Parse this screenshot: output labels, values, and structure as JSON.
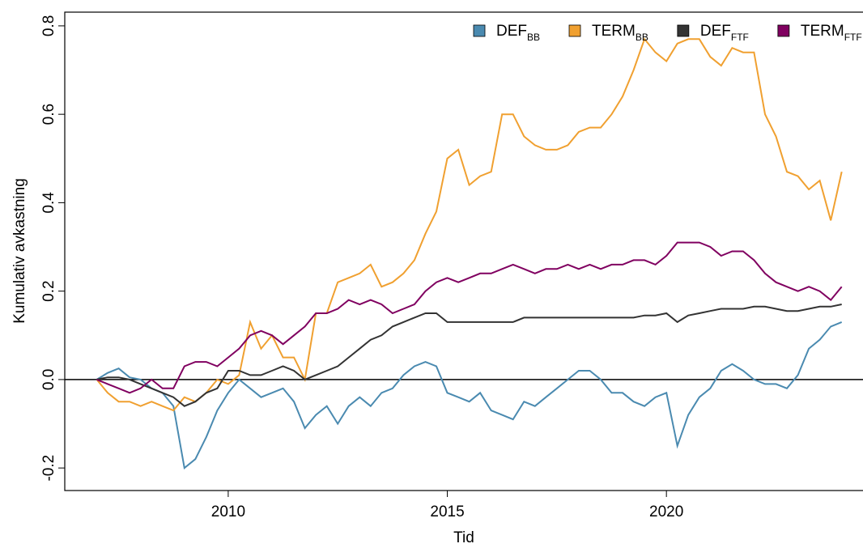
{
  "chart_data": {
    "type": "line",
    "xlabel": "Tid",
    "ylabel": "Kumulativ avkastning",
    "x": [
      2007,
      2007.25,
      2007.5,
      2007.75,
      2008,
      2008.25,
      2008.5,
      2008.75,
      2009,
      2009.25,
      2009.5,
      2009.75,
      2010,
      2010.25,
      2010.5,
      2010.75,
      2011,
      2011.25,
      2011.5,
      2011.75,
      2012,
      2012.25,
      2012.5,
      2012.75,
      2013,
      2013.25,
      2013.5,
      2013.75,
      2014,
      2014.25,
      2014.5,
      2014.75,
      2015,
      2015.25,
      2015.5,
      2015.75,
      2016,
      2016.25,
      2016.5,
      2016.75,
      2017,
      2017.25,
      2017.5,
      2017.75,
      2018,
      2018.25,
      2018.5,
      2018.75,
      2019,
      2019.25,
      2019.5,
      2019.75,
      2020,
      2020.25,
      2020.5,
      2020.75,
      2021,
      2021.25,
      2021.5,
      2021.75,
      2022,
      2022.25,
      2022.5,
      2022.75,
      2023,
      2023.25,
      2023.5,
      2023.75,
      2024
    ],
    "series": [
      {
        "name": "DEF",
        "subscript": "BB",
        "color": "#4a8ab0",
        "values": [
          0,
          0.015,
          0.025,
          0.005,
          0,
          -0.02,
          -0.03,
          -0.06,
          -0.2,
          -0.18,
          -0.13,
          -0.07,
          -0.03,
          0,
          -0.02,
          -0.04,
          -0.03,
          -0.02,
          -0.05,
          -0.11,
          -0.08,
          -0.06,
          -0.1,
          -0.06,
          -0.04,
          -0.06,
          -0.03,
          -0.02,
          0.01,
          0.03,
          0.04,
          0.03,
          -0.03,
          -0.04,
          -0.05,
          -0.03,
          -0.07,
          -0.08,
          -0.09,
          -0.05,
          -0.06,
          -0.04,
          -0.02,
          0,
          0.02,
          0.02,
          0,
          -0.03,
          -0.03,
          -0.05,
          -0.06,
          -0.04,
          -0.03,
          -0.15,
          -0.08,
          -0.04,
          -0.02,
          0.02,
          0.035,
          0.02,
          0,
          -0.01,
          -0.01,
          -0.02,
          0.01,
          0.07,
          0.09,
          0.12,
          0.13
        ]
      },
      {
        "name": "TERM",
        "subscript": "BB",
        "color": "#f0a030",
        "values": [
          0,
          -0.03,
          -0.05,
          -0.05,
          -0.06,
          -0.05,
          -0.06,
          -0.07,
          -0.04,
          -0.05,
          -0.03,
          0,
          -0.01,
          0.01,
          0.13,
          0.07,
          0.1,
          0.05,
          0.05,
          0,
          0.15,
          0.15,
          0.22,
          0.23,
          0.24,
          0.26,
          0.21,
          0.22,
          0.24,
          0.27,
          0.33,
          0.38,
          0.5,
          0.52,
          0.44,
          0.46,
          0.47,
          0.6,
          0.6,
          0.55,
          0.53,
          0.52,
          0.52,
          0.53,
          0.56,
          0.57,
          0.57,
          0.6,
          0.64,
          0.7,
          0.77,
          0.74,
          0.72,
          0.76,
          0.77,
          0.77,
          0.73,
          0.71,
          0.75,
          0.74,
          0.74,
          0.6,
          0.55,
          0.47,
          0.46,
          0.43,
          0.45,
          0.36,
          0.47
        ]
      },
      {
        "name": "DEF",
        "subscript": "FTF",
        "color": "#333333",
        "values": [
          0,
          0.005,
          0.005,
          0,
          -0.01,
          -0.02,
          -0.03,
          -0.04,
          -0.06,
          -0.05,
          -0.03,
          -0.02,
          0.02,
          0.02,
          0.01,
          0.01,
          0.02,
          0.03,
          0.02,
          0,
          0.01,
          0.02,
          0.03,
          0.05,
          0.07,
          0.09,
          0.1,
          0.12,
          0.13,
          0.14,
          0.15,
          0.15,
          0.13,
          0.13,
          0.13,
          0.13,
          0.13,
          0.13,
          0.13,
          0.14,
          0.14,
          0.14,
          0.14,
          0.14,
          0.14,
          0.14,
          0.14,
          0.14,
          0.14,
          0.14,
          0.145,
          0.145,
          0.15,
          0.13,
          0.145,
          0.15,
          0.155,
          0.16,
          0.16,
          0.16,
          0.165,
          0.165,
          0.16,
          0.155,
          0.155,
          0.16,
          0.165,
          0.165,
          0.17
        ]
      },
      {
        "name": "TERM",
        "subscript": "FTF",
        "color": "#800060",
        "values": [
          0,
          -0.01,
          -0.02,
          -0.03,
          -0.02,
          0,
          -0.02,
          -0.02,
          0.03,
          0.04,
          0.04,
          0.03,
          0.05,
          0.07,
          0.1,
          0.11,
          0.1,
          0.08,
          0.1,
          0.12,
          0.15,
          0.15,
          0.16,
          0.18,
          0.17,
          0.18,
          0.17,
          0.15,
          0.16,
          0.17,
          0.2,
          0.22,
          0.23,
          0.22,
          0.23,
          0.24,
          0.24,
          0.25,
          0.26,
          0.25,
          0.24,
          0.25,
          0.25,
          0.26,
          0.25,
          0.26,
          0.25,
          0.26,
          0.26,
          0.27,
          0.27,
          0.26,
          0.28,
          0.31,
          0.31,
          0.31,
          0.3,
          0.28,
          0.29,
          0.29,
          0.27,
          0.24,
          0.22,
          0.21,
          0.2,
          0.21,
          0.2,
          0.18,
          0.21
        ]
      }
    ],
    "xlim": [
      2006.27,
      2024.56
    ],
    "ylim": [
      -0.251,
      0.831
    ],
    "xticks": [
      2010,
      2015,
      2020
    ],
    "yticks": [
      -0.2,
      {
        "value": 0,
        "label": "0.0"
      },
      0.2,
      0.4,
      0.6,
      0.8
    ],
    "hline": 0,
    "legend": "top"
  }
}
